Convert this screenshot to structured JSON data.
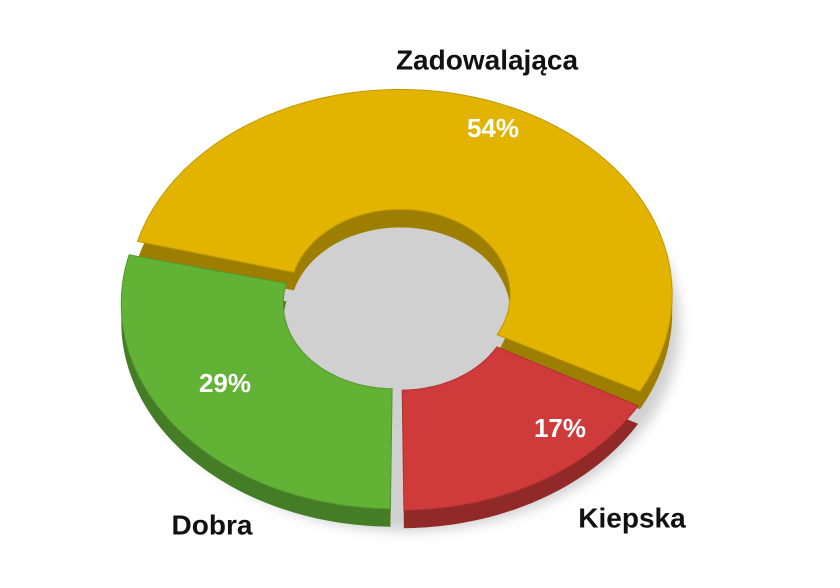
{
  "chart_data": {
    "type": "donut",
    "categories": [
      "Dobra",
      "Zadowalająca",
      "Kiepska"
    ],
    "values": [
      29,
      54,
      17
    ],
    "value_labels": [
      "29%",
      "54%",
      "17%"
    ],
    "colors": [
      "#62b236",
      "#e2b400",
      "#cf3a3a"
    ]
  }
}
